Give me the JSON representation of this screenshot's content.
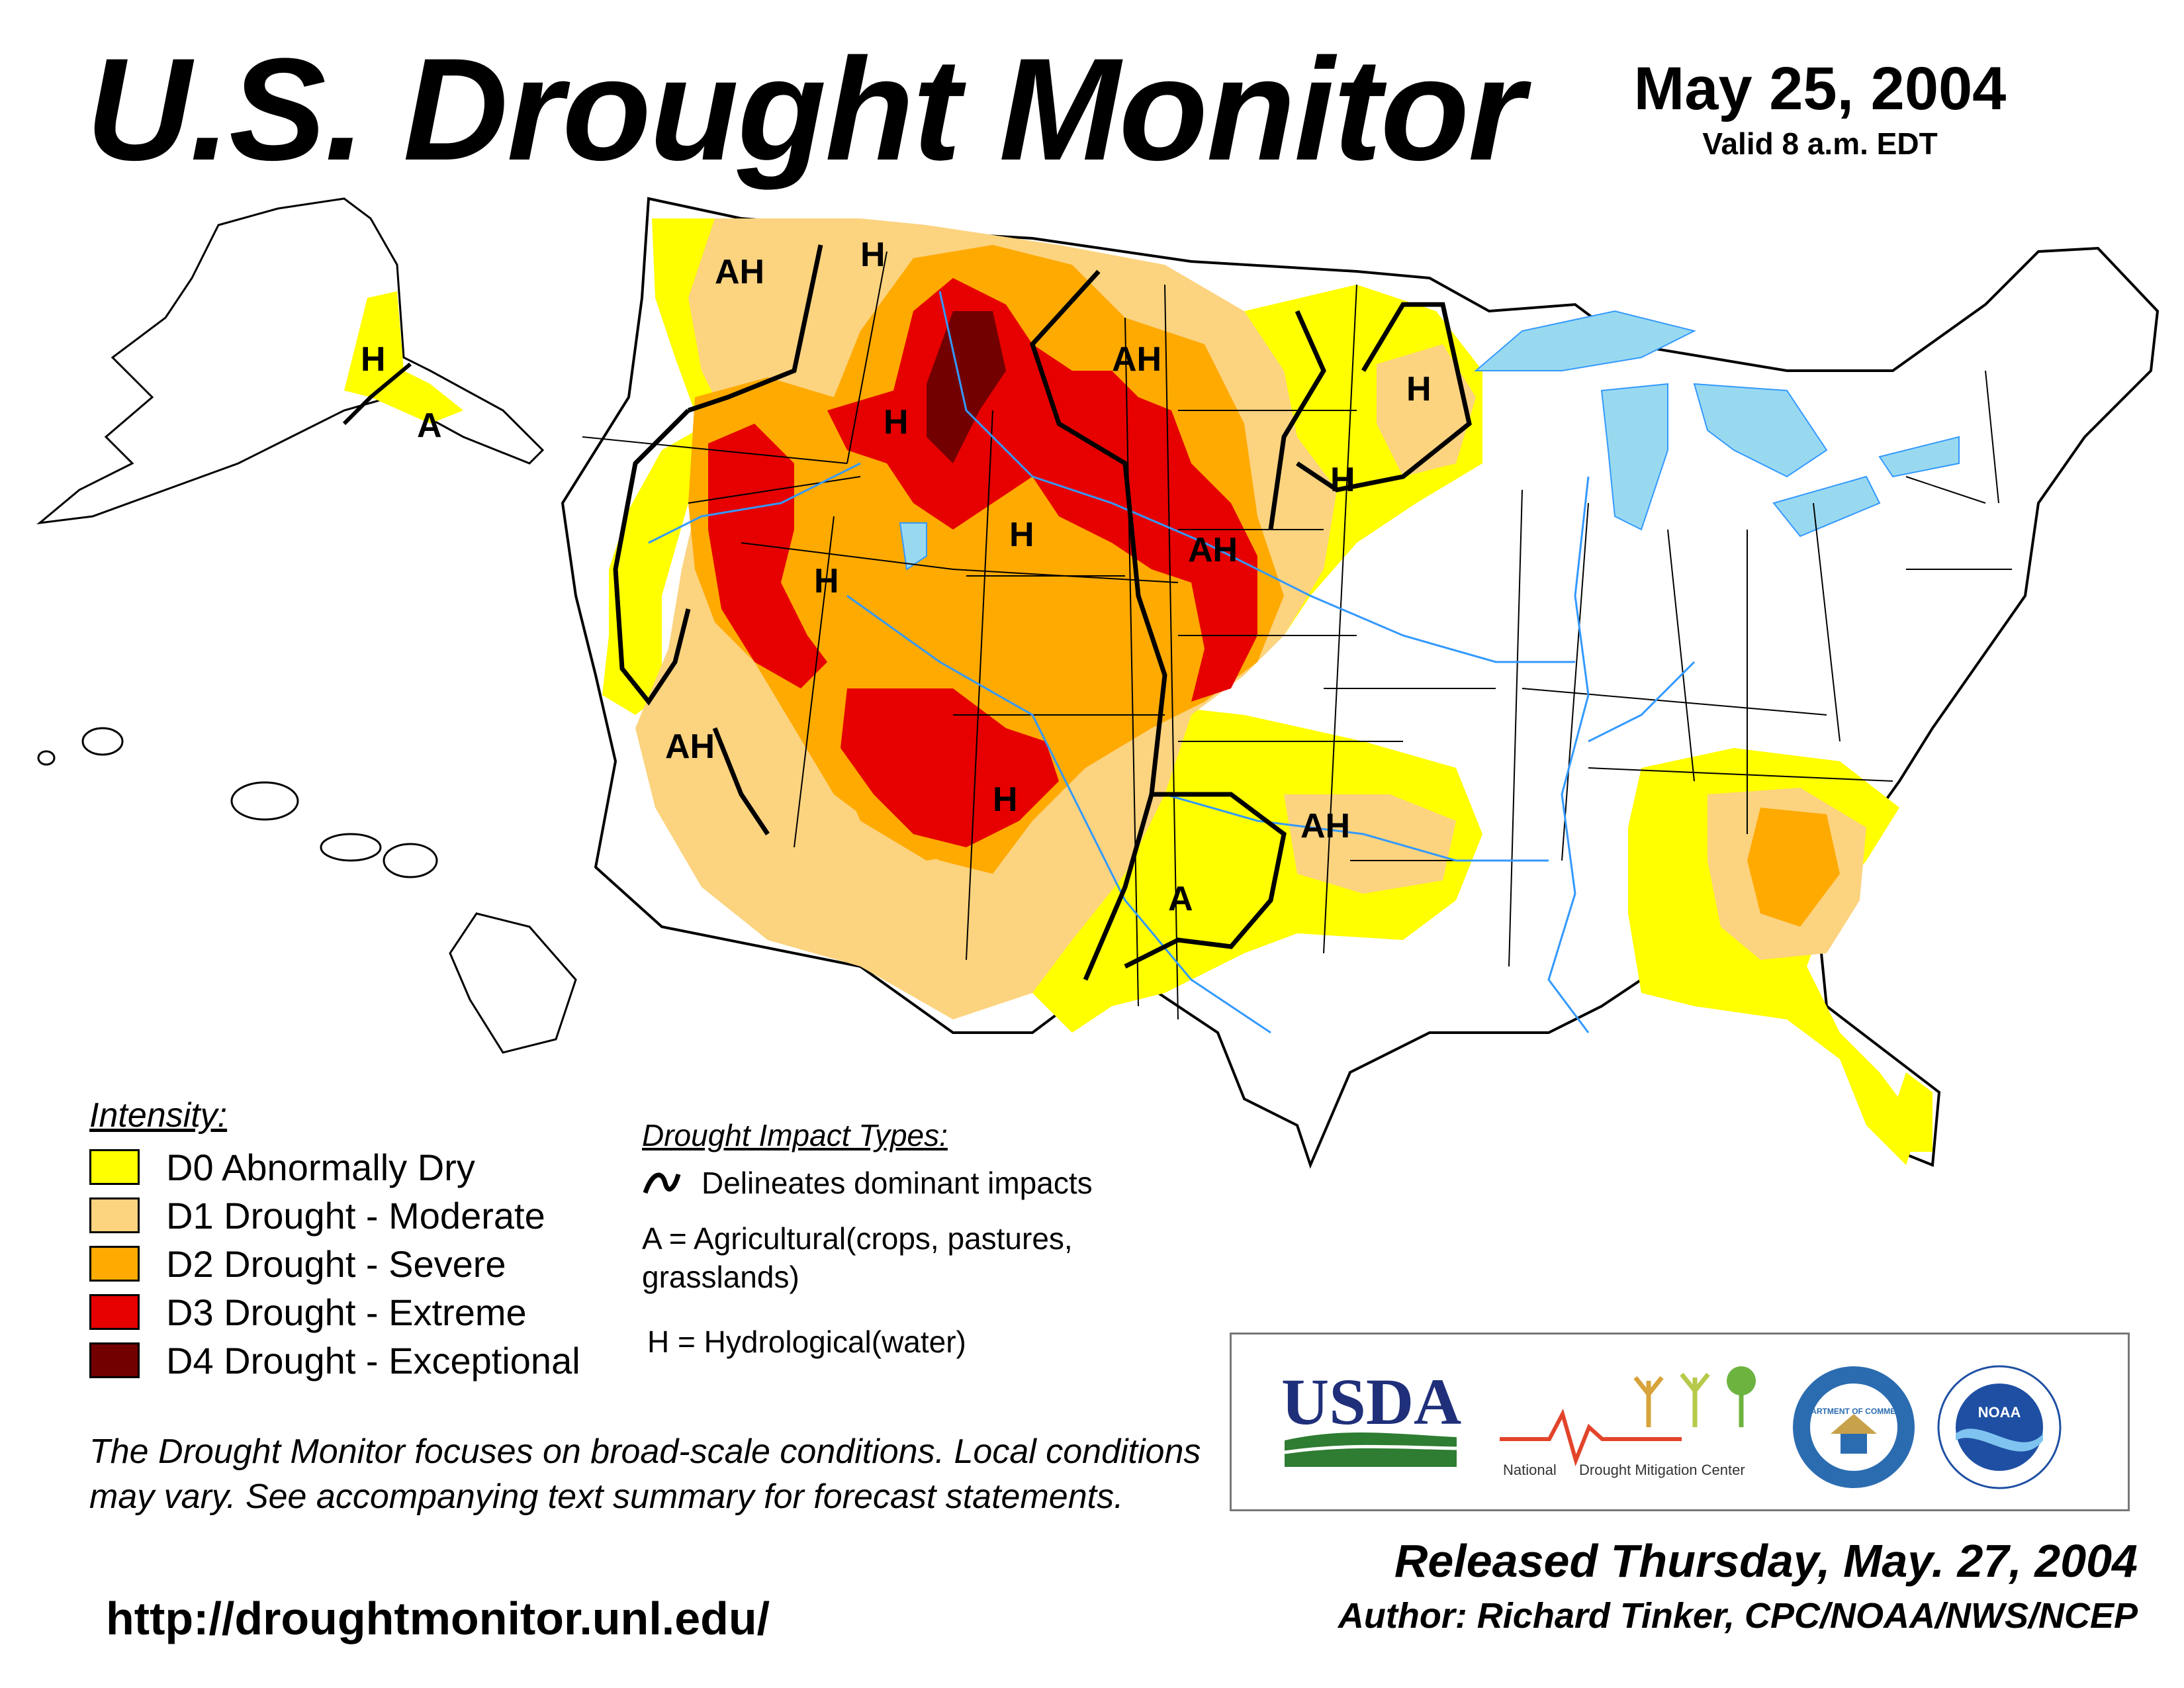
{
  "header": {
    "title": "U.S. Drought Monitor",
    "date": "May 25, 2004",
    "valid": "Valid 8 a.m. EDT"
  },
  "legend": {
    "title": "Intensity:",
    "items": [
      {
        "code": "D0",
        "label": "D0 Abnormally Dry",
        "color": "#FFFF00"
      },
      {
        "code": "D1",
        "label": "D1 Drought - Moderate",
        "color": "#FCD37F"
      },
      {
        "code": "D2",
        "label": "D2 Drought - Severe",
        "color": "#FFAA00"
      },
      {
        "code": "D3",
        "label": "D3 Drought - Extreme",
        "color": "#E60000"
      },
      {
        "code": "D4",
        "label": "D4 Drought - Exceptional",
        "color": "#730000"
      }
    ]
  },
  "impacts": {
    "title": "Drought Impact Types:",
    "line_label": "Delineates dominant impacts",
    "agricultural": "A = Agricultural(crops, pastures, grasslands)",
    "hydrological": "H = Hydrological(water)"
  },
  "map": {
    "impact_labels": [
      "AH",
      "H",
      "H",
      "A",
      "H",
      "AH",
      "AH",
      "H",
      "H",
      "AH",
      "AH",
      "H",
      "A",
      "H",
      "H"
    ],
    "colors": {
      "water": "#99D9F0",
      "river": "#3399FF",
      "state_border": "#000000",
      "county_border": "#9A9A9A",
      "land": "#FFFFFF"
    }
  },
  "footer": {
    "disclaimer": "The Drought Monitor focuses on broad-scale conditions. Local conditions may vary. See accompanying text summary for forecast statements.",
    "url": "http://droughtmonitor.unl.edu/",
    "released": "Released Thursday, May. 27, 2004",
    "author": "Author: Richard Tinker, CPC/NOAA/NWS/NCEP"
  },
  "logos": {
    "usda": "USDA",
    "ndmc_left": "National",
    "ndmc_right": "Drought Mitigation Center",
    "commerce": "DEPARTMENT OF COMMERCE",
    "noaa": "NOAA"
  }
}
